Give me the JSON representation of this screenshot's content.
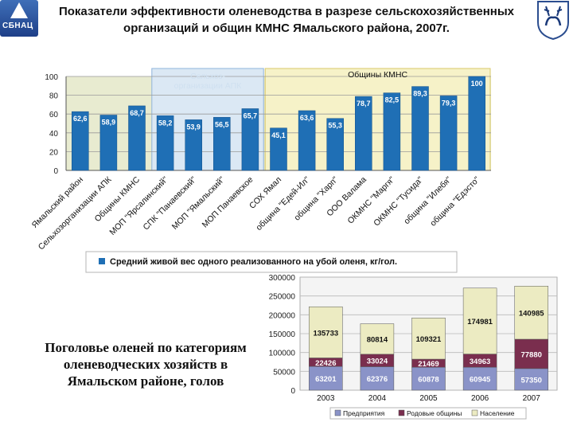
{
  "header": {
    "title_line1": "Показатели эффективности оленеводства в разрезе сельскохозяйственных",
    "title_line2": "организаций и общин КМНС Ямальского района, 2007г.",
    "logo_text": "СБНАЦ"
  },
  "caption": "Поголовье оленей по категориям оленеводческих хозяйств в Ямальском районе, голов",
  "chart_data": [
    {
      "type": "bar",
      "categories": [
        "Ямальский район",
        "Сельхозорганизации АПК",
        "Общины КМНС",
        "МОП \"Ярсалинский\"",
        "СПК \"Панаевский\"",
        "МОП \"Ямальский\"",
        "МОП Панаевское",
        "СОХ Ямал",
        "община \"Едей-Ил\"",
        "община \"Харп\"",
        "ООО Валама",
        "ОКМНС \"Маргя\"",
        "ОКМНС \"Тусида\"",
        "община \"Илебя\"",
        "община \"Едэсто\""
      ],
      "values": [
        62.6,
        58.9,
        68.7,
        58.2,
        53.9,
        56.5,
        65.7,
        45.1,
        63.6,
        55.3,
        78.7,
        82.5,
        89.3,
        79.3,
        100
      ],
      "value_labels": [
        "62,6",
        "58,9",
        "68,7",
        "58,2",
        "53,9",
        "56,5",
        "65,7",
        "45,1",
        "63,6",
        "55,3",
        "78,7",
        "82,5",
        "89,3",
        "79,3",
        "100"
      ],
      "yticks": [
        0,
        20,
        40,
        60,
        80,
        100
      ],
      "ylim": [
        0,
        100
      ],
      "groups": [
        {
          "label": "Сельхоз- организации АПК",
          "first": 3,
          "last": 6
        },
        {
          "label": "Общины КМНС",
          "first": 7,
          "last": 14
        }
      ],
      "legend": "Средний живой вес одного реализованного на убой оленя, кг/гол.",
      "grid": true,
      "colors": {
        "bar": "#1f6fb5",
        "plot_bg": "#e8ebd0",
        "apk_region": "#dbe8f4",
        "kmns_region": "#f6f2c8"
      }
    },
    {
      "type": "bar",
      "stacked": true,
      "categories": [
        "2003",
        "2004",
        "2005",
        "2006",
        "2007"
      ],
      "series": [
        {
          "name": "Предприятия",
          "values": [
            63201,
            62376,
            60878,
            60945,
            57350
          ],
          "labels": [
            "63201",
            "62376",
            "60878",
            "60945",
            "57350"
          ],
          "color": "#8a93c8"
        },
        {
          "name": "Родовые общины",
          "values": [
            22426,
            33024,
            21469,
            34963,
            77880
          ],
          "labels": [
            "22426",
            "33024",
            "21469",
            "34963",
            "77880"
          ],
          "color": "#7a2e4e"
        },
        {
          "name": "Население",
          "values": [
            135733,
            80814,
            109321,
            174981,
            140985
          ],
          "labels": [
            "135733",
            "80814",
            "109321",
            "174981",
            "140985"
          ],
          "color": "#ecebc2"
        }
      ],
      "yticks": [
        0,
        50000,
        100000,
        150000,
        200000,
        250000,
        300000
      ],
      "ytick_labels": [
        "0",
        "50000",
        "100000",
        "150000",
        "200000",
        "250000",
        "300000"
      ],
      "ylim": [
        0,
        300000
      ],
      "legend_position": "bottom",
      "grid": true
    }
  ]
}
